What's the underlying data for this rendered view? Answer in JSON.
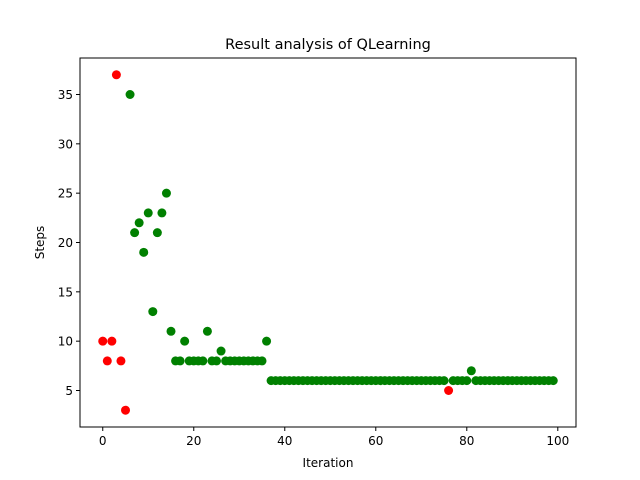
{
  "chart_data": {
    "type": "scatter",
    "title": "Result analysis of QLearning",
    "xlabel": "Iteration",
    "ylabel": "Steps",
    "xlim": [
      -5,
      104
    ],
    "ylim": [
      1.3,
      38.7
    ],
    "xticks": [
      0,
      20,
      40,
      60,
      80,
      100
    ],
    "yticks": [
      5,
      10,
      15,
      20,
      25,
      30,
      35
    ],
    "grid": false,
    "legend": "none",
    "colors": {
      "success": "#008000",
      "failure": "#ff0000"
    },
    "series": [
      {
        "color": "failure",
        "x": [
          0,
          1,
          2,
          3,
          4,
          5,
          76
        ],
        "y": [
          10,
          8,
          10,
          37,
          8,
          3,
          5
        ]
      },
      {
        "color": "success",
        "x": [
          6,
          7,
          8,
          9,
          10,
          11,
          12,
          13,
          14,
          15,
          16,
          17,
          18,
          19,
          20,
          21,
          22,
          23,
          24,
          25,
          26,
          27,
          28,
          29,
          30,
          31,
          32,
          33,
          34,
          35,
          36,
          37,
          38,
          39,
          40,
          41,
          42,
          43,
          44,
          45,
          46,
          47,
          48,
          49,
          50,
          51,
          52,
          53,
          54,
          55,
          56,
          57,
          58,
          59,
          60,
          61,
          62,
          63,
          64,
          65,
          66,
          67,
          68,
          69,
          70,
          71,
          72,
          73,
          74,
          75,
          77,
          78,
          79,
          80,
          81,
          82,
          83,
          84,
          85,
          86,
          87,
          88,
          89,
          90,
          91,
          92,
          93,
          94,
          95,
          96,
          97,
          98,
          99
        ],
        "y": [
          35,
          21,
          22,
          19,
          23,
          13,
          21,
          23,
          25,
          11,
          8,
          8,
          10,
          8,
          8,
          8,
          8,
          11,
          8,
          8,
          9,
          8,
          8,
          8,
          8,
          8,
          8,
          8,
          8,
          8,
          10,
          6,
          6,
          6,
          6,
          6,
          6,
          6,
          6,
          6,
          6,
          6,
          6,
          6,
          6,
          6,
          6,
          6,
          6,
          6,
          6,
          6,
          6,
          6,
          6,
          6,
          6,
          6,
          6,
          6,
          6,
          6,
          6,
          6,
          6,
          6,
          6,
          6,
          6,
          6,
          6,
          6,
          6,
          6,
          7,
          6,
          6,
          6,
          6,
          6,
          6,
          6,
          6,
          6,
          6,
          6,
          6,
          6,
          6,
          6,
          6,
          6,
          6
        ]
      }
    ]
  }
}
